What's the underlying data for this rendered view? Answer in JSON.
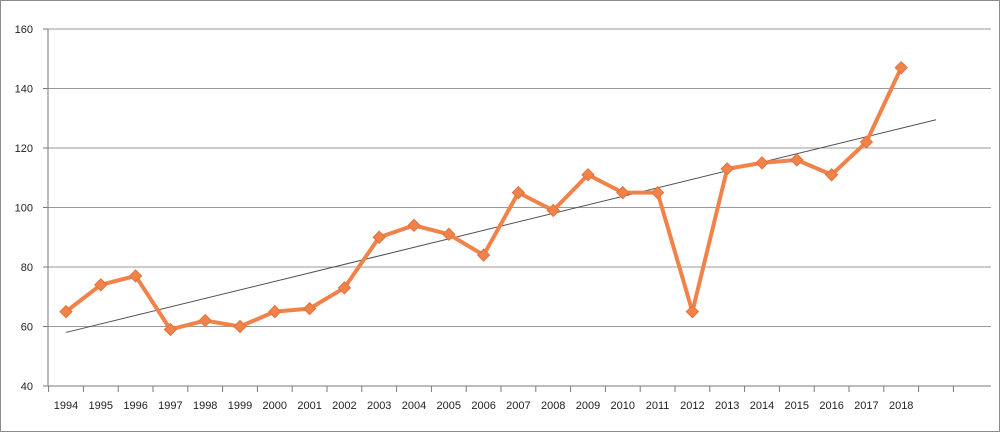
{
  "chart_data": {
    "type": "line",
    "title": "",
    "xlabel": "",
    "ylabel": "",
    "ylim": [
      40,
      160
    ],
    "yticks": [
      40,
      60,
      80,
      100,
      120,
      140,
      160
    ],
    "grid": "horizontal",
    "legend": "none",
    "categories": [
      "1994",
      "1995",
      "1996",
      "1997",
      "1998",
      "1999",
      "2000",
      "2001",
      "2002",
      "2003",
      "2004",
      "2005",
      "2006",
      "2007",
      "2008",
      "2009",
      "2010",
      "2011",
      "2012",
      "2013",
      "2014",
      "2015",
      "2016",
      "2017",
      "2018"
    ],
    "series": [
      {
        "values": [
          65,
          74,
          77,
          59,
          62,
          60,
          65,
          66,
          73,
          90,
          94,
          91,
          84,
          105,
          99,
          111,
          105,
          105,
          65,
          113,
          115,
          116,
          111,
          122,
          147
        ],
        "color": "#f0824a",
        "marker": "diamond"
      }
    ],
    "trendline": {
      "type": "linear",
      "start_value": 58,
      "end_value": 129.5,
      "extends_categories": 1,
      "color": "#505050"
    }
  }
}
